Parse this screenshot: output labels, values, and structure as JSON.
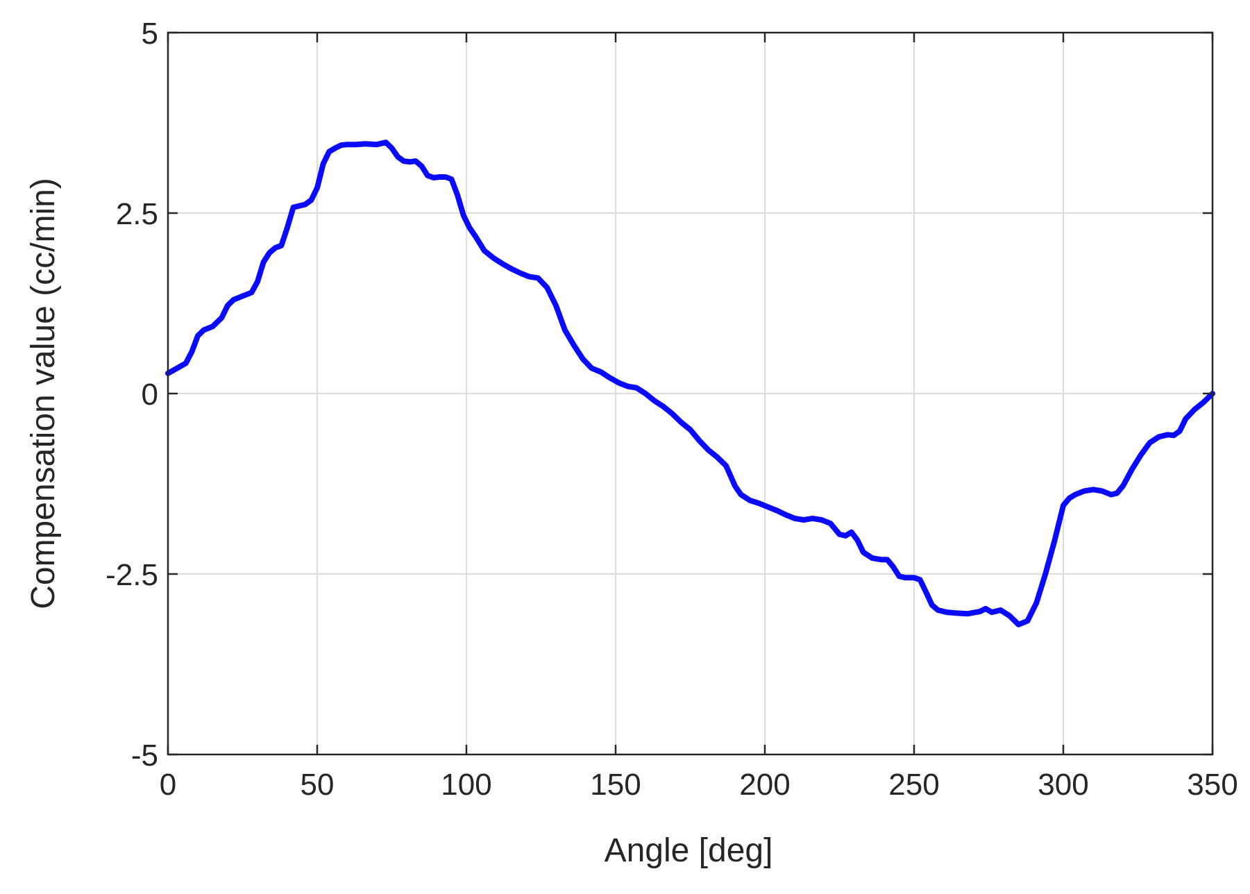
{
  "chart_data": {
    "type": "line",
    "title": "",
    "xlabel": "Angle [deg]",
    "ylabel": "Compensation value (cc/min)",
    "xlim": [
      0,
      350
    ],
    "ylim": [
      -5,
      5
    ],
    "grid": true,
    "x_ticks": [
      0,
      50,
      100,
      150,
      200,
      250,
      300,
      350
    ],
    "y_ticks": [
      -5,
      -2.5,
      0,
      2.5,
      5
    ],
    "x_tick_labels": [
      "0",
      "50",
      "100",
      "150",
      "200",
      "250",
      "300",
      "350"
    ],
    "y_tick_labels": [
      "-5",
      "-2.5",
      "0",
      "2.5",
      "5"
    ],
    "colors": {
      "series": "#0a0aff",
      "axis": "#262626",
      "grid": "#dcdcdc",
      "background": "#ffffff"
    },
    "series": [
      {
        "x": [
          0,
          3,
          6,
          8,
          10,
          12,
          15,
          18,
          20,
          22,
          25,
          28,
          30,
          32,
          34,
          36,
          38,
          40,
          42,
          44,
          46,
          48,
          50,
          52,
          54,
          56,
          58,
          60,
          63,
          66,
          70,
          73,
          75,
          77,
          79,
          81,
          83,
          85,
          87,
          89,
          91,
          93,
          95,
          97,
          99,
          101,
          103,
          106,
          109,
          112,
          115,
          118,
          121,
          124,
          127,
          130,
          133,
          136,
          139,
          142,
          145,
          148,
          151,
          154,
          157,
          160,
          163,
          166,
          169,
          172,
          175,
          178,
          181,
          184,
          187,
          190,
          192,
          195,
          198,
          201,
          204,
          207,
          210,
          213,
          216,
          219,
          222,
          225,
          227,
          229,
          231,
          233,
          236,
          239,
          241,
          243,
          245,
          247,
          250,
          252,
          254,
          256,
          258,
          261,
          264,
          268,
          272,
          274,
          276,
          279,
          282,
          285,
          288,
          291,
          294,
          297,
          300,
          302,
          304,
          307,
          310,
          313,
          316,
          318,
          320,
          323,
          326,
          329,
          332,
          335,
          337,
          339,
          341,
          344,
          347,
          350
        ],
        "y": [
          0.28,
          0.35,
          0.42,
          0.58,
          0.8,
          0.88,
          0.93,
          1.05,
          1.22,
          1.3,
          1.35,
          1.4,
          1.55,
          1.82,
          1.95,
          2.02,
          2.05,
          2.3,
          2.58,
          2.6,
          2.62,
          2.68,
          2.85,
          3.18,
          3.35,
          3.4,
          3.44,
          3.45,
          3.45,
          3.46,
          3.45,
          3.48,
          3.4,
          3.28,
          3.22,
          3.21,
          3.22,
          3.15,
          3.02,
          2.99,
          3.0,
          3.0,
          2.97,
          2.75,
          2.47,
          2.3,
          2.18,
          1.98,
          1.88,
          1.8,
          1.73,
          1.67,
          1.62,
          1.6,
          1.47,
          1.22,
          0.88,
          0.67,
          0.48,
          0.35,
          0.3,
          0.22,
          0.15,
          0.1,
          0.08,
          0.0,
          -0.1,
          -0.18,
          -0.28,
          -0.4,
          -0.5,
          -0.65,
          -0.78,
          -0.88,
          -1.0,
          -1.28,
          -1.4,
          -1.48,
          -1.52,
          -1.57,
          -1.62,
          -1.68,
          -1.73,
          -1.75,
          -1.73,
          -1.75,
          -1.8,
          -1.95,
          -1.97,
          -1.92,
          -2.03,
          -2.2,
          -2.28,
          -2.3,
          -2.3,
          -2.4,
          -2.53,
          -2.55,
          -2.55,
          -2.58,
          -2.75,
          -2.93,
          -3.0,
          -3.03,
          -3.04,
          -3.05,
          -3.02,
          -2.98,
          -3.03,
          -3.0,
          -3.08,
          -3.2,
          -3.15,
          -2.9,
          -2.5,
          -2.05,
          -1.55,
          -1.45,
          -1.4,
          -1.35,
          -1.33,
          -1.35,
          -1.4,
          -1.38,
          -1.28,
          -1.05,
          -0.85,
          -0.68,
          -0.6,
          -0.57,
          -0.58,
          -0.52,
          -0.35,
          -0.22,
          -0.12,
          0.0
        ]
      }
    ]
  }
}
